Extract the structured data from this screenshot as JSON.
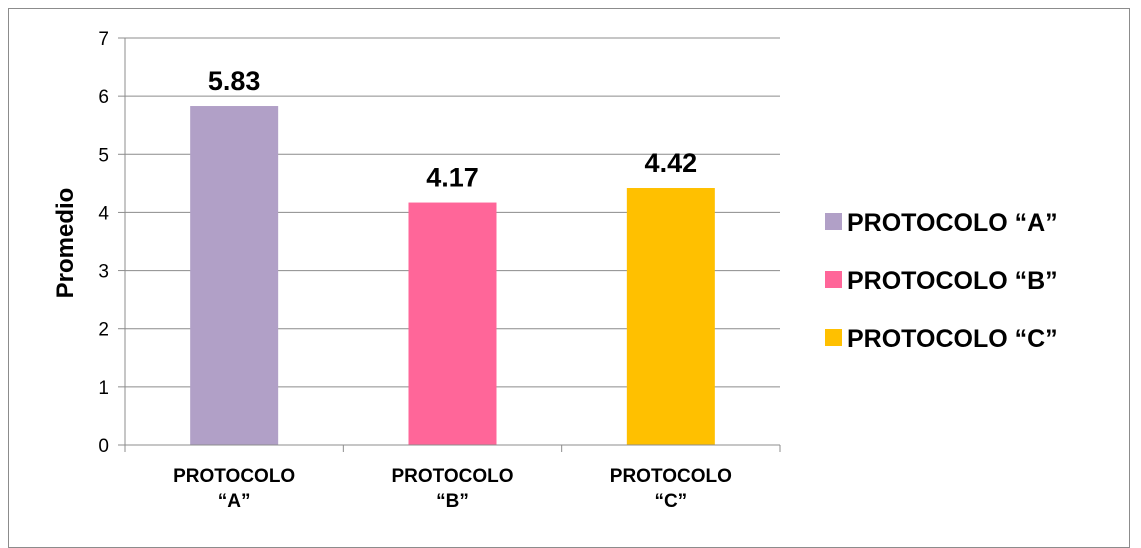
{
  "chart_data": {
    "type": "bar",
    "categories": [
      [
        "PROTOCOLO",
        "“A”"
      ],
      [
        "PROTOCOLO",
        "“B”"
      ],
      [
        "PROTOCOLO",
        "“C”"
      ]
    ],
    "values": [
      5.83,
      4.17,
      4.42
    ],
    "data_labels": [
      "5.83",
      "4.17",
      "4.42"
    ],
    "colors": [
      "#b1a0c7",
      "#ff6699",
      "#ffc000"
    ],
    "title": "",
    "xlabel": "",
    "ylabel": "Promedio",
    "ylim": [
      0,
      7
    ],
    "yticks": [
      "0",
      "1",
      "2",
      "3",
      "4",
      "5",
      "6",
      "7"
    ],
    "grid": true,
    "legend": {
      "placement": "right",
      "entries": [
        "PROTOCOLO “A”",
        "PROTOCOLO “B”",
        "PROTOCOLO “C”"
      ]
    }
  }
}
